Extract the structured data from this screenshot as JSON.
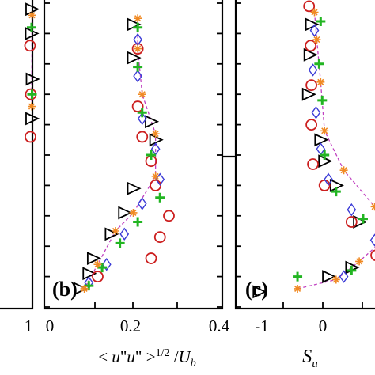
{
  "colors": {
    "circle": "#cc1f1f",
    "triangle": "#000000",
    "diamond": "#3b3bd6",
    "plus": "#22b522",
    "asterisk": "#f08a24",
    "dashline": "#c040c0"
  },
  "chart_data": [
    {
      "type": "scatter",
      "panel_label": "",
      "xlabel": "",
      "x_ticks": [
        "1"
      ],
      "xlim": [
        0,
        1
      ],
      "ylim": [
        0,
        1
      ],
      "series": [
        {
          "marker": "triangle",
          "x": [
            0.98,
            0.97,
            0.99,
            0.98
          ],
          "y": [
            0.98,
            0.9,
            0.75,
            0.62
          ]
        },
        {
          "marker": "circle",
          "x": [
            0.94,
            0.96,
            0.95
          ],
          "y": [
            0.86,
            0.7,
            0.56
          ]
        },
        {
          "marker": "plus",
          "x": [
            0.98,
            0.99
          ],
          "y": [
            0.92,
            0.7
          ]
        },
        {
          "marker": "asterisk",
          "x": [
            0.99,
            0.98
          ],
          "y": [
            0.96,
            0.66
          ]
        }
      ]
    },
    {
      "type": "scatter",
      "panel_label": "(b)",
      "xlabel": "< u\"u\" >1/2 /Ub",
      "x_ticks": [
        "0",
        "0.2",
        "0.4"
      ],
      "xlim": [
        0,
        0.4
      ],
      "ylim": [
        0,
        1
      ],
      "series": [
        {
          "marker": "triangle",
          "x": [
            0.2,
            0.2,
            0.24,
            0.25,
            0.2,
            0.18,
            0.15,
            0.11,
            0.1,
            0.08
          ],
          "y": [
            0.93,
            0.82,
            0.61,
            0.55,
            0.39,
            0.31,
            0.24,
            0.16,
            0.11,
            0.06
          ]
        },
        {
          "marker": "circle",
          "x": [
            0.21,
            0.21,
            0.22,
            0.24,
            0.25,
            0.28,
            0.26,
            0.24,
            0.12
          ],
          "y": [
            0.85,
            0.66,
            0.56,
            0.48,
            0.4,
            0.3,
            0.23,
            0.16,
            0.1
          ]
        },
        {
          "marker": "diamond",
          "x": [
            0.21,
            0.21,
            0.22,
            0.25,
            0.26,
            0.22,
            0.18,
            0.14,
            0.1
          ],
          "y": [
            0.88,
            0.76,
            0.62,
            0.52,
            0.42,
            0.34,
            0.24,
            0.14,
            0.08
          ]
        },
        {
          "marker": "plus",
          "x": [
            0.21,
            0.21,
            0.22,
            0.24,
            0.26,
            0.21,
            0.17,
            0.13,
            0.1
          ],
          "y": [
            0.92,
            0.79,
            0.64,
            0.5,
            0.36,
            0.28,
            0.21,
            0.13,
            0.07
          ]
        },
        {
          "marker": "asterisk",
          "x": [
            0.21,
            0.21,
            0.22,
            0.25,
            0.25,
            0.2,
            0.16,
            0.12,
            0.09
          ],
          "y": [
            0.95,
            0.85,
            0.7,
            0.57,
            0.43,
            0.31,
            0.25,
            0.14,
            0.06
          ]
        }
      ]
    },
    {
      "type": "scatter",
      "panel_label": "(c)",
      "xlabel": "Su",
      "x_ticks": [
        "-1",
        "0"
      ],
      "xlim": [
        -1.1,
        0.95
      ],
      "ylim": [
        0,
        1
      ],
      "series": [
        {
          "marker": "triangle",
          "x": [
            -0.12,
            -0.14,
            -0.16,
            0.0,
            0.05,
            0.2,
            0.5,
            0.9,
            0.4,
            0.1,
            -0.8
          ],
          "y": [
            0.93,
            0.83,
            0.7,
            0.55,
            0.48,
            0.4,
            0.28,
            0.2,
            0.13,
            0.1,
            0.05
          ]
        },
        {
          "marker": "circle",
          "x": [
            -0.15,
            -0.13,
            -0.12,
            -0.12,
            -0.1,
            0.05,
            0.4,
            0.72,
            0.9
          ],
          "y": [
            0.99,
            0.86,
            0.73,
            0.6,
            0.47,
            0.4,
            0.28,
            0.17,
            0.08
          ]
        },
        {
          "marker": "diamond",
          "x": [
            -0.08,
            -0.1,
            -0.06,
            0.0,
            0.1,
            0.4,
            0.7,
            0.3
          ],
          "y": [
            0.91,
            0.78,
            0.64,
            0.52,
            0.42,
            0.32,
            0.22,
            0.1
          ]
        },
        {
          "marker": "plus",
          "x": [
            0.0,
            -0.02,
            0.02,
            0.05,
            0.2,
            0.55,
            0.85,
            0.4,
            -0.3
          ],
          "y": [
            0.94,
            0.8,
            0.68,
            0.5,
            0.38,
            0.29,
            0.18,
            0.12,
            0.1
          ]
        },
        {
          "marker": "asterisk",
          "x": [
            -0.08,
            -0.05,
            0.0,
            0.05,
            0.3,
            0.7,
            0.9,
            0.5,
            0.2,
            -0.3
          ],
          "y": [
            0.97,
            0.88,
            0.74,
            0.58,
            0.45,
            0.33,
            0.24,
            0.15,
            0.09,
            0.06
          ]
        }
      ]
    }
  ]
}
